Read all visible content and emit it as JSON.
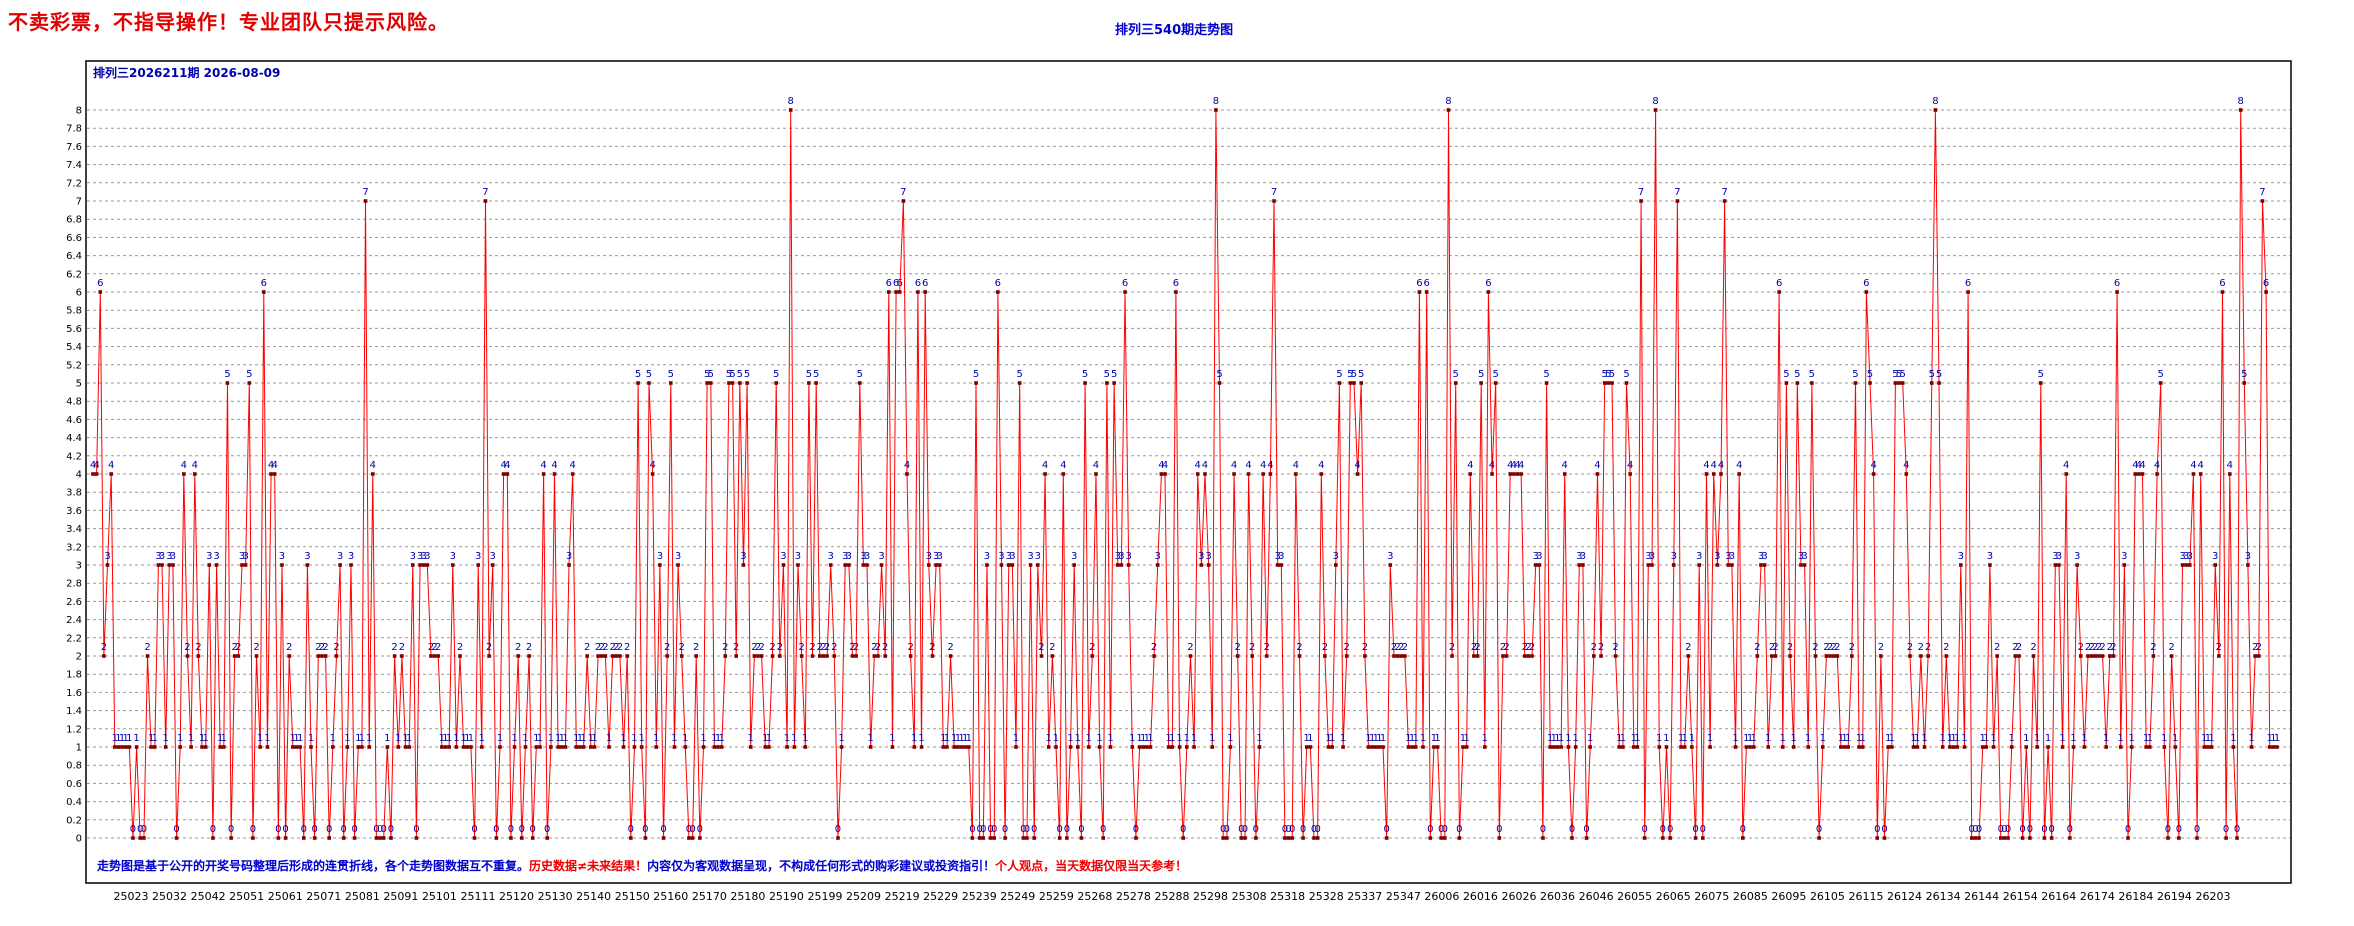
{
  "warning_text": "不卖彩票，不指导操作！专业团队只提示风险。",
  "page_title": "排列三540期走势图",
  "chart_header": "排列三2026211期  2026-08-09",
  "footer_note": {
    "part1": "走势图是基于公开的开奖号码整理后形成的连贯折线，各个走势图数据互不重复。",
    "part2": "历史数据≠未来结果！",
    "part3": "内容仅为客观数据呈现，不构成任何形式的购彩建议或投资指引！",
    "part4": "个人观点，当天数据仅限当天参考！"
  },
  "colors": {
    "line": "#ff0000",
    "marker": "#800000",
    "value_label": "#0000aa",
    "warning": "#e00000",
    "title": "#0000cc"
  },
  "chart_data": {
    "type": "line",
    "title": "排列三540期走势图",
    "xlabel": "",
    "ylabel": "",
    "ylim": [
      0,
      8
    ],
    "y_tick_step": 0.2,
    "grid": true,
    "x_tick_labels": [
      "25023",
      "25032",
      "25042",
      "25051",
      "25061",
      "25071",
      "25081",
      "25091",
      "25101",
      "25111",
      "25120",
      "25130",
      "25140",
      "25150",
      "25160",
      "25170",
      "25180",
      "25190",
      "25199",
      "25209",
      "25219",
      "25229",
      "25239",
      "25249",
      "25259",
      "25268",
      "25278",
      "25288",
      "25298",
      "25308",
      "25318",
      "25328",
      "25337",
      "25347",
      "26006",
      "26016",
      "26026",
      "26036",
      "26046",
      "26055",
      "26065",
      "26075",
      "26085",
      "26095",
      "26105",
      "26115",
      "26124",
      "26134",
      "26144",
      "26154",
      "26164",
      "26174",
      "26184",
      "26194",
      "26203"
    ],
    "series": [
      {
        "values": [
          4,
          4,
          6,
          2,
          3,
          4,
          1,
          1,
          1,
          1,
          1,
          0,
          1,
          0,
          0,
          2,
          1,
          1,
          3,
          3,
          1,
          3,
          3,
          0,
          1,
          4,
          2,
          1,
          4,
          2,
          1,
          1,
          3,
          0,
          3,
          1,
          1,
          5,
          0,
          2,
          2,
          3,
          3,
          5,
          0,
          2,
          1,
          6,
          1,
          4,
          4,
          0,
          3,
          0,
          2,
          1,
          1,
          1,
          0,
          3,
          1,
          0,
          2,
          2,
          2,
          0,
          1,
          2,
          3,
          0,
          1,
          3,
          0,
          1,
          1,
          7,
          1,
          4,
          0,
          0,
          0,
          1,
          0,
          2,
          1,
          2,
          1,
          1,
          3,
          0,
          3,
          3,
          3,
          2,
          2,
          2,
          1,
          1,
          1,
          3,
          1,
          2,
          1,
          1,
          1,
          0,
          3,
          1,
          7,
          2,
          3,
          0,
          1,
          4,
          4,
          0,
          1,
          2,
          0,
          1,
          2,
          0,
          1,
          1,
          4,
          0,
          1,
          4,
          1,
          1,
          1,
          3,
          4,
          1,
          1,
          1,
          2,
          1,
          1,
          2,
          2,
          2,
          1,
          2,
          2,
          2,
          1,
          2,
          0,
          1,
          5,
          1,
          0,
          5,
          4,
          1,
          3,
          0,
          2,
          5,
          1,
          3,
          2,
          1,
          0,
          0,
          2,
          0,
          1,
          5,
          5,
          1,
          1,
          1,
          2,
          5,
          5,
          2,
          5,
          3,
          5,
          1,
          2,
          2,
          2,
          1,
          1,
          2,
          5,
          2,
          3,
          1,
          8,
          1,
          3,
          2,
          1,
          5,
          2,
          5,
          2,
          2,
          2,
          3,
          2,
          0,
          1,
          3,
          3,
          2,
          2,
          5,
          3,
          3,
          1,
          2,
          2,
          3,
          2,
          6,
          1,
          6,
          6,
          7,
          4,
          2,
          1,
          6,
          1,
          6,
          3,
          2,
          3,
          3,
          1,
          1,
          2,
          1,
          1,
          1,
          1,
          1,
          0,
          5,
          0,
          0,
          3,
          0,
          0,
          6,
          3,
          0,
          3,
          3,
          1,
          5,
          0,
          0,
          3,
          0,
          3,
          2,
          4,
          1,
          2,
          1,
          0,
          4,
          0,
          1,
          3,
          1,
          0,
          5,
          1,
          2,
          4,
          1,
          0,
          5,
          1,
          5,
          3,
          3,
          6,
          3,
          1,
          0,
          1,
          1,
          1,
          1,
          2,
          3,
          4,
          4,
          1,
          1,
          6,
          1,
          0,
          1,
          2,
          1,
          4,
          3,
          4,
          3,
          1,
          8,
          5,
          0,
          0,
          1,
          4,
          2,
          0,
          0,
          4,
          2,
          0,
          1,
          4,
          2,
          4,
          7,
          3,
          3,
          0,
          0,
          0,
          4,
          2,
          0,
          1,
          1,
          0,
          0,
          4,
          2,
          1,
          1,
          3,
          5,
          1,
          2,
          5,
          5,
          4,
          5,
          2,
          1,
          1,
          1,
          1,
          1,
          0,
          3,
          2,
          2,
          2,
          2,
          1,
          1,
          1,
          6,
          1,
          6,
          0,
          1,
          1,
          0,
          0,
          8,
          2,
          5,
          0,
          1,
          1,
          4,
          2,
          2,
          5,
          1,
          6,
          4,
          5,
          0,
          2,
          2,
          4,
          4,
          4,
          4,
          2,
          2,
          2,
          3,
          3,
          0,
          5,
          1,
          1,
          1,
          1,
          4,
          1,
          0,
          1,
          3,
          3,
          0,
          1,
          2,
          4,
          2,
          5,
          5,
          5,
          2,
          1,
          1,
          5,
          4,
          1,
          1,
          7,
          0,
          3,
          3,
          8,
          1,
          0,
          1,
          0,
          3,
          7,
          1,
          1,
          2,
          1,
          0,
          3,
          0,
          4,
          1,
          4,
          3,
          4,
          7,
          3,
          3,
          1,
          4,
          0,
          1,
          1,
          1,
          2,
          3,
          3,
          1,
          2,
          2,
          6,
          1,
          5,
          2,
          1,
          5,
          3,
          3,
          1,
          5,
          2,
          0,
          1,
          2,
          2,
          2,
          2,
          1,
          1,
          1,
          2,
          5,
          1,
          1,
          6,
          5,
          4,
          0,
          2,
          0,
          1,
          1,
          5,
          5,
          5,
          4,
          2,
          1,
          1,
          2,
          1,
          2,
          5,
          8,
          5,
          1,
          2,
          1,
          1,
          1,
          3,
          1,
          6,
          0,
          0,
          0,
          1,
          1,
          3,
          1,
          2,
          0,
          0,
          0,
          1,
          2,
          2,
          0,
          1,
          0,
          2,
          1,
          5,
          0,
          1,
          0,
          3,
          3,
          1,
          4,
          0,
          1,
          3,
          2,
          1,
          2,
          2,
          2,
          2,
          2,
          1,
          2,
          2,
          6,
          1,
          3,
          0,
          1,
          4,
          4,
          4,
          1,
          1,
          2,
          4,
          5,
          1,
          0,
          2,
          1,
          0,
          3,
          3,
          3,
          4,
          0,
          4,
          1,
          1,
          1,
          3,
          2,
          6,
          0,
          4,
          1,
          0,
          8,
          5,
          3,
          1,
          2,
          2,
          7,
          6,
          1,
          1,
          1
        ]
      }
    ]
  }
}
